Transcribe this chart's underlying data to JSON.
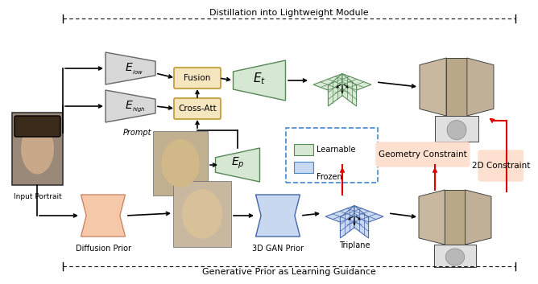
{
  "title_top": "Distillation into Lightweight Module",
  "title_bottom": "Generative Prior as Learning Guidance",
  "labels": {
    "E_low": "$E_{low}$",
    "E_high": "$E_{high}$",
    "E_t": "$E_t$",
    "E_p": "$E_p$",
    "Fusion": "Fusion",
    "CrossAtt": "Cross-Att",
    "Prompt": "Prompt",
    "InputPortrait": "Input Portrait",
    "DiffusionPrior": "Diffusion Prior",
    "GAN3D": "3D GAN Prior",
    "Triplane": "Triplane",
    "GeometryConstraint": "Geometry Constraint",
    "Constraint2D": "2D Constraint",
    "Learnable": "Learnable",
    "Frozen": "Frozen"
  },
  "colors": {
    "background": "#ffffff",
    "encoder_gray": "#d8d8d8",
    "encoder_green": "#d6e8d4",
    "encoder_blue_light": "#c8d8f0",
    "fusion_box": "#f5e6c0",
    "fusion_border": "#c8a84b",
    "geometry_bg": "#fde0d0",
    "red_arrow": "#dd0000",
    "black": "#000000",
    "dashed_border": "#4488cc",
    "diffusion_color": "#f5c8a8",
    "diffusion_border": "#cc8866"
  }
}
